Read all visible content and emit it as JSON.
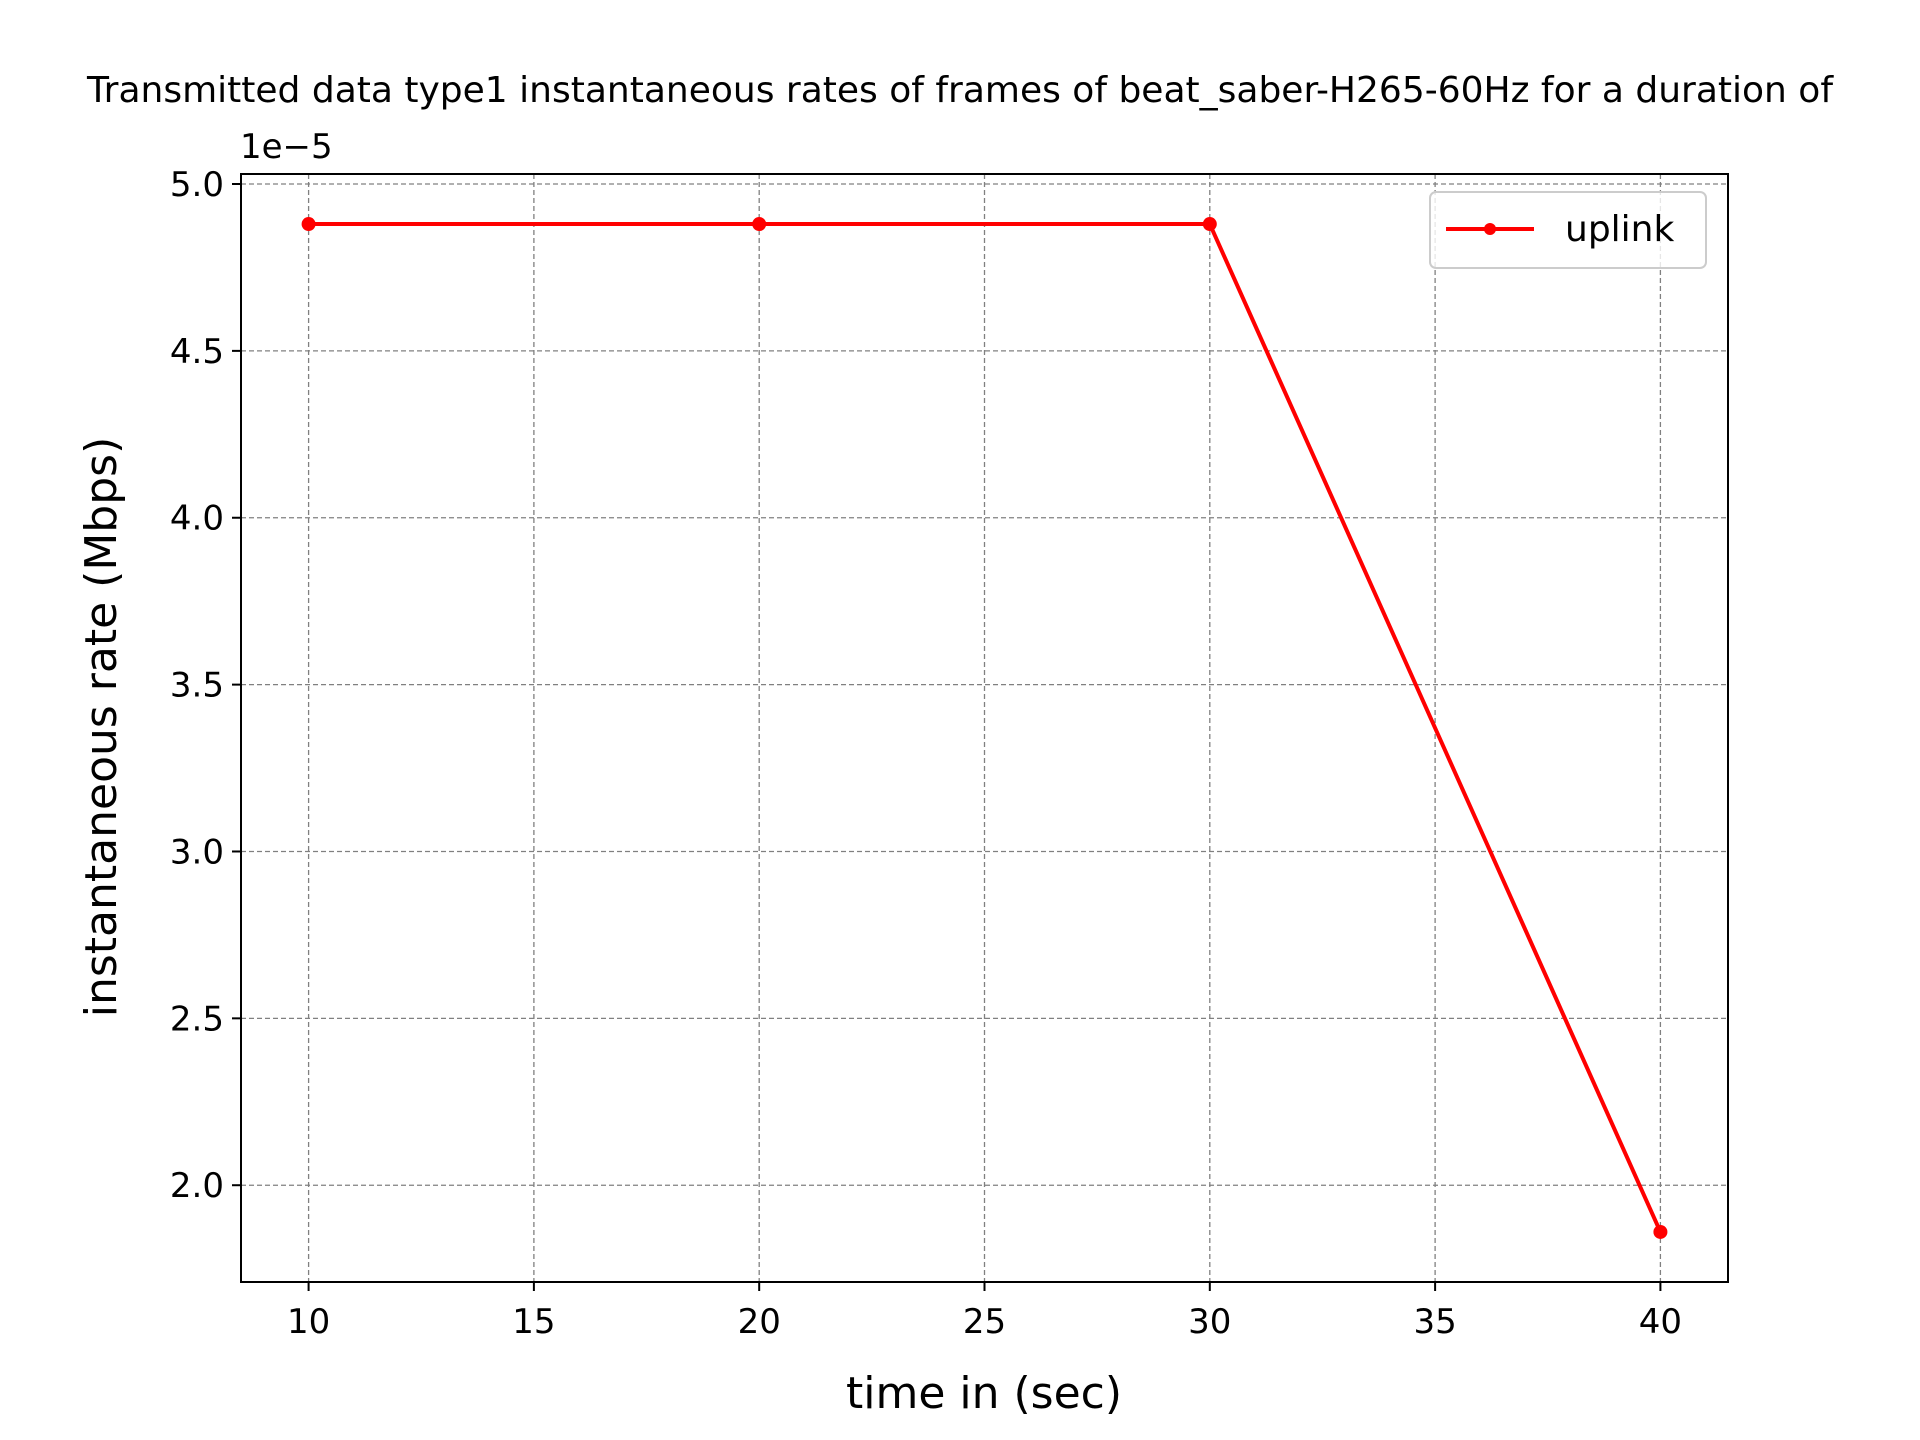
{
  "chart_data": {
    "type": "line",
    "title": "Transmitted data type1 instantaneous rates of frames of beat_saber-H265-60Hz for a duration of",
    "xlabel": "time in (sec)",
    "ylabel": "instantaneous rate (Mbps)",
    "y_offset_label": "1e−5",
    "x_ticks": [
      10,
      15,
      20,
      25,
      30,
      35,
      40
    ],
    "x_tick_labels": [
      "10",
      "15",
      "20",
      "25",
      "30",
      "35",
      "40"
    ],
    "y_ticks": [
      2.0,
      2.5,
      3.0,
      3.5,
      4.0,
      4.5,
      5.0
    ],
    "y_tick_labels": [
      "2.0",
      "2.5",
      "3.0",
      "3.5",
      "4.0",
      "4.5",
      "5.0"
    ],
    "xlim": [
      8.5,
      41.5
    ],
    "ylim": [
      1.71,
      5.03
    ],
    "y_scale_factor": 1e-05,
    "grid": true,
    "legend_position": "top-right",
    "series": [
      {
        "name": "uplink",
        "color": "#ff0000",
        "marker": "circle",
        "x": [
          10,
          20,
          30,
          40
        ],
        "y": [
          4.88,
          4.88,
          4.88,
          1.86
        ]
      }
    ]
  }
}
